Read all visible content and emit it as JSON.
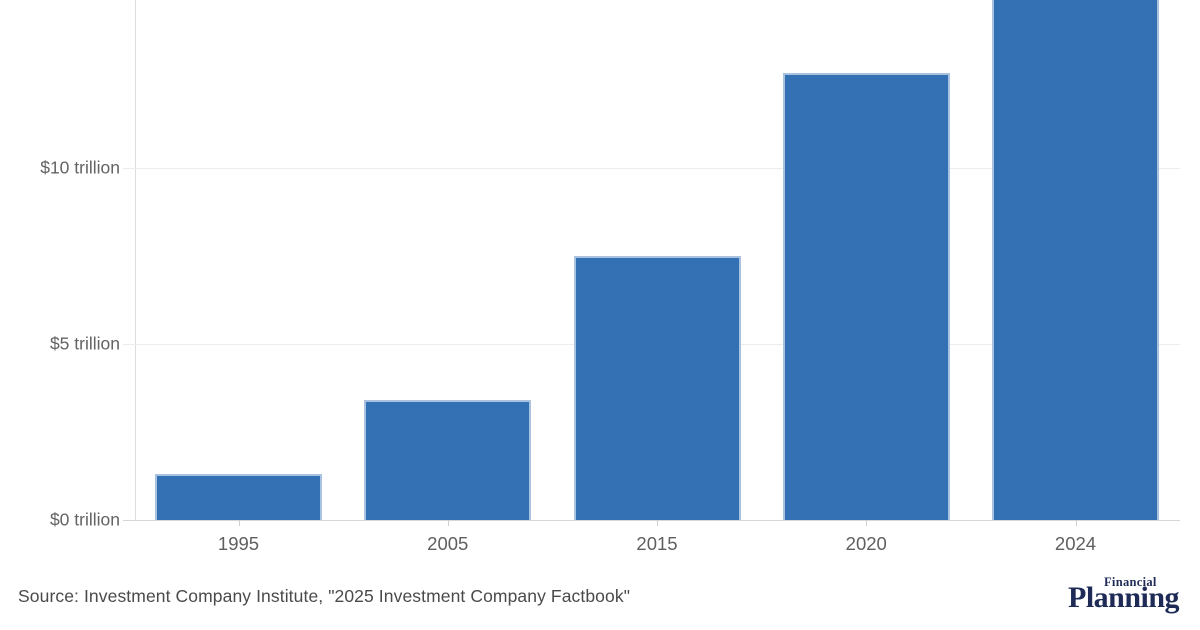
{
  "chart_data": {
    "type": "bar",
    "categories": [
      "1995",
      "2005",
      "2015",
      "2020",
      "2024"
    ],
    "values": [
      1.3,
      3.4,
      7.5,
      12.7,
      16.8
    ],
    "unit": "trillions of US dollars",
    "title": "",
    "xlabel": "",
    "ylabel": "",
    "y_ticks": [
      {
        "value": 0,
        "label": "$0 trillion"
      },
      {
        "value": 5,
        "label": "$5 trillion"
      },
      {
        "value": 10,
        "label": "$10 trillion"
      }
    ],
    "ylim_visible": [
      0,
      14.8
    ],
    "clipped_bars": [
      "2024"
    ],
    "grid": true,
    "legend": false,
    "bar_color": "#3370b4",
    "bar_border_color": "#a9c2e0",
    "gridline_color": "#ececec",
    "axis_line_color": "#d6d6d6",
    "tick_label_color": "#5f5f5f"
  },
  "footer": {
    "source_text": "Source: Investment Company Institute, \"2025 Investment Company Factbook\"",
    "logo": {
      "line1": "Financial",
      "line2": "Planning",
      "color": "#1e2b57"
    }
  }
}
